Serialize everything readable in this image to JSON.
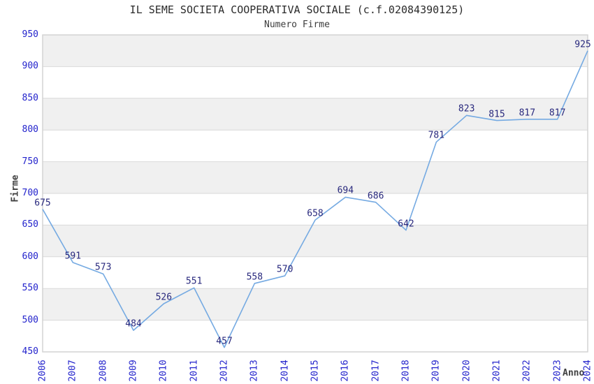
{
  "chart_data": {
    "type": "line",
    "title": "IL SEME SOCIETA COOPERATIVA SOCIALE (c.f.02084390125)",
    "subtitle": "Numero Firme",
    "xlabel": "Anno",
    "ylabel": "Firme",
    "categories": [
      "2006",
      "2007",
      "2008",
      "2009",
      "2010",
      "2011",
      "2012",
      "2013",
      "2014",
      "2015",
      "2016",
      "2017",
      "2018",
      "2019",
      "2020",
      "2021",
      "2022",
      "2023",
      "2024"
    ],
    "values": [
      675,
      591,
      573,
      484,
      526,
      551,
      457,
      558,
      570,
      658,
      694,
      686,
      642,
      781,
      823,
      815,
      817,
      817,
      925
    ],
    "ylim": [
      450,
      950
    ],
    "ytick_step": 50,
    "grid": "horizontal-only",
    "background_bands": "alternating-gray",
    "legend": "none",
    "point_labels_visible": true,
    "x_tick_rotation_deg": -90,
    "colors": {
      "line": "#75aae2",
      "axis_tick_label": "#2323cc",
      "point_label": "#28287d",
      "band": "#f0f0f0",
      "gridline": "#d9d9d9",
      "plot_border": "#d3d3d3",
      "title_text": "#2b2b2b",
      "axis_title_text": "#404040",
      "background": "#ffffff"
    }
  }
}
